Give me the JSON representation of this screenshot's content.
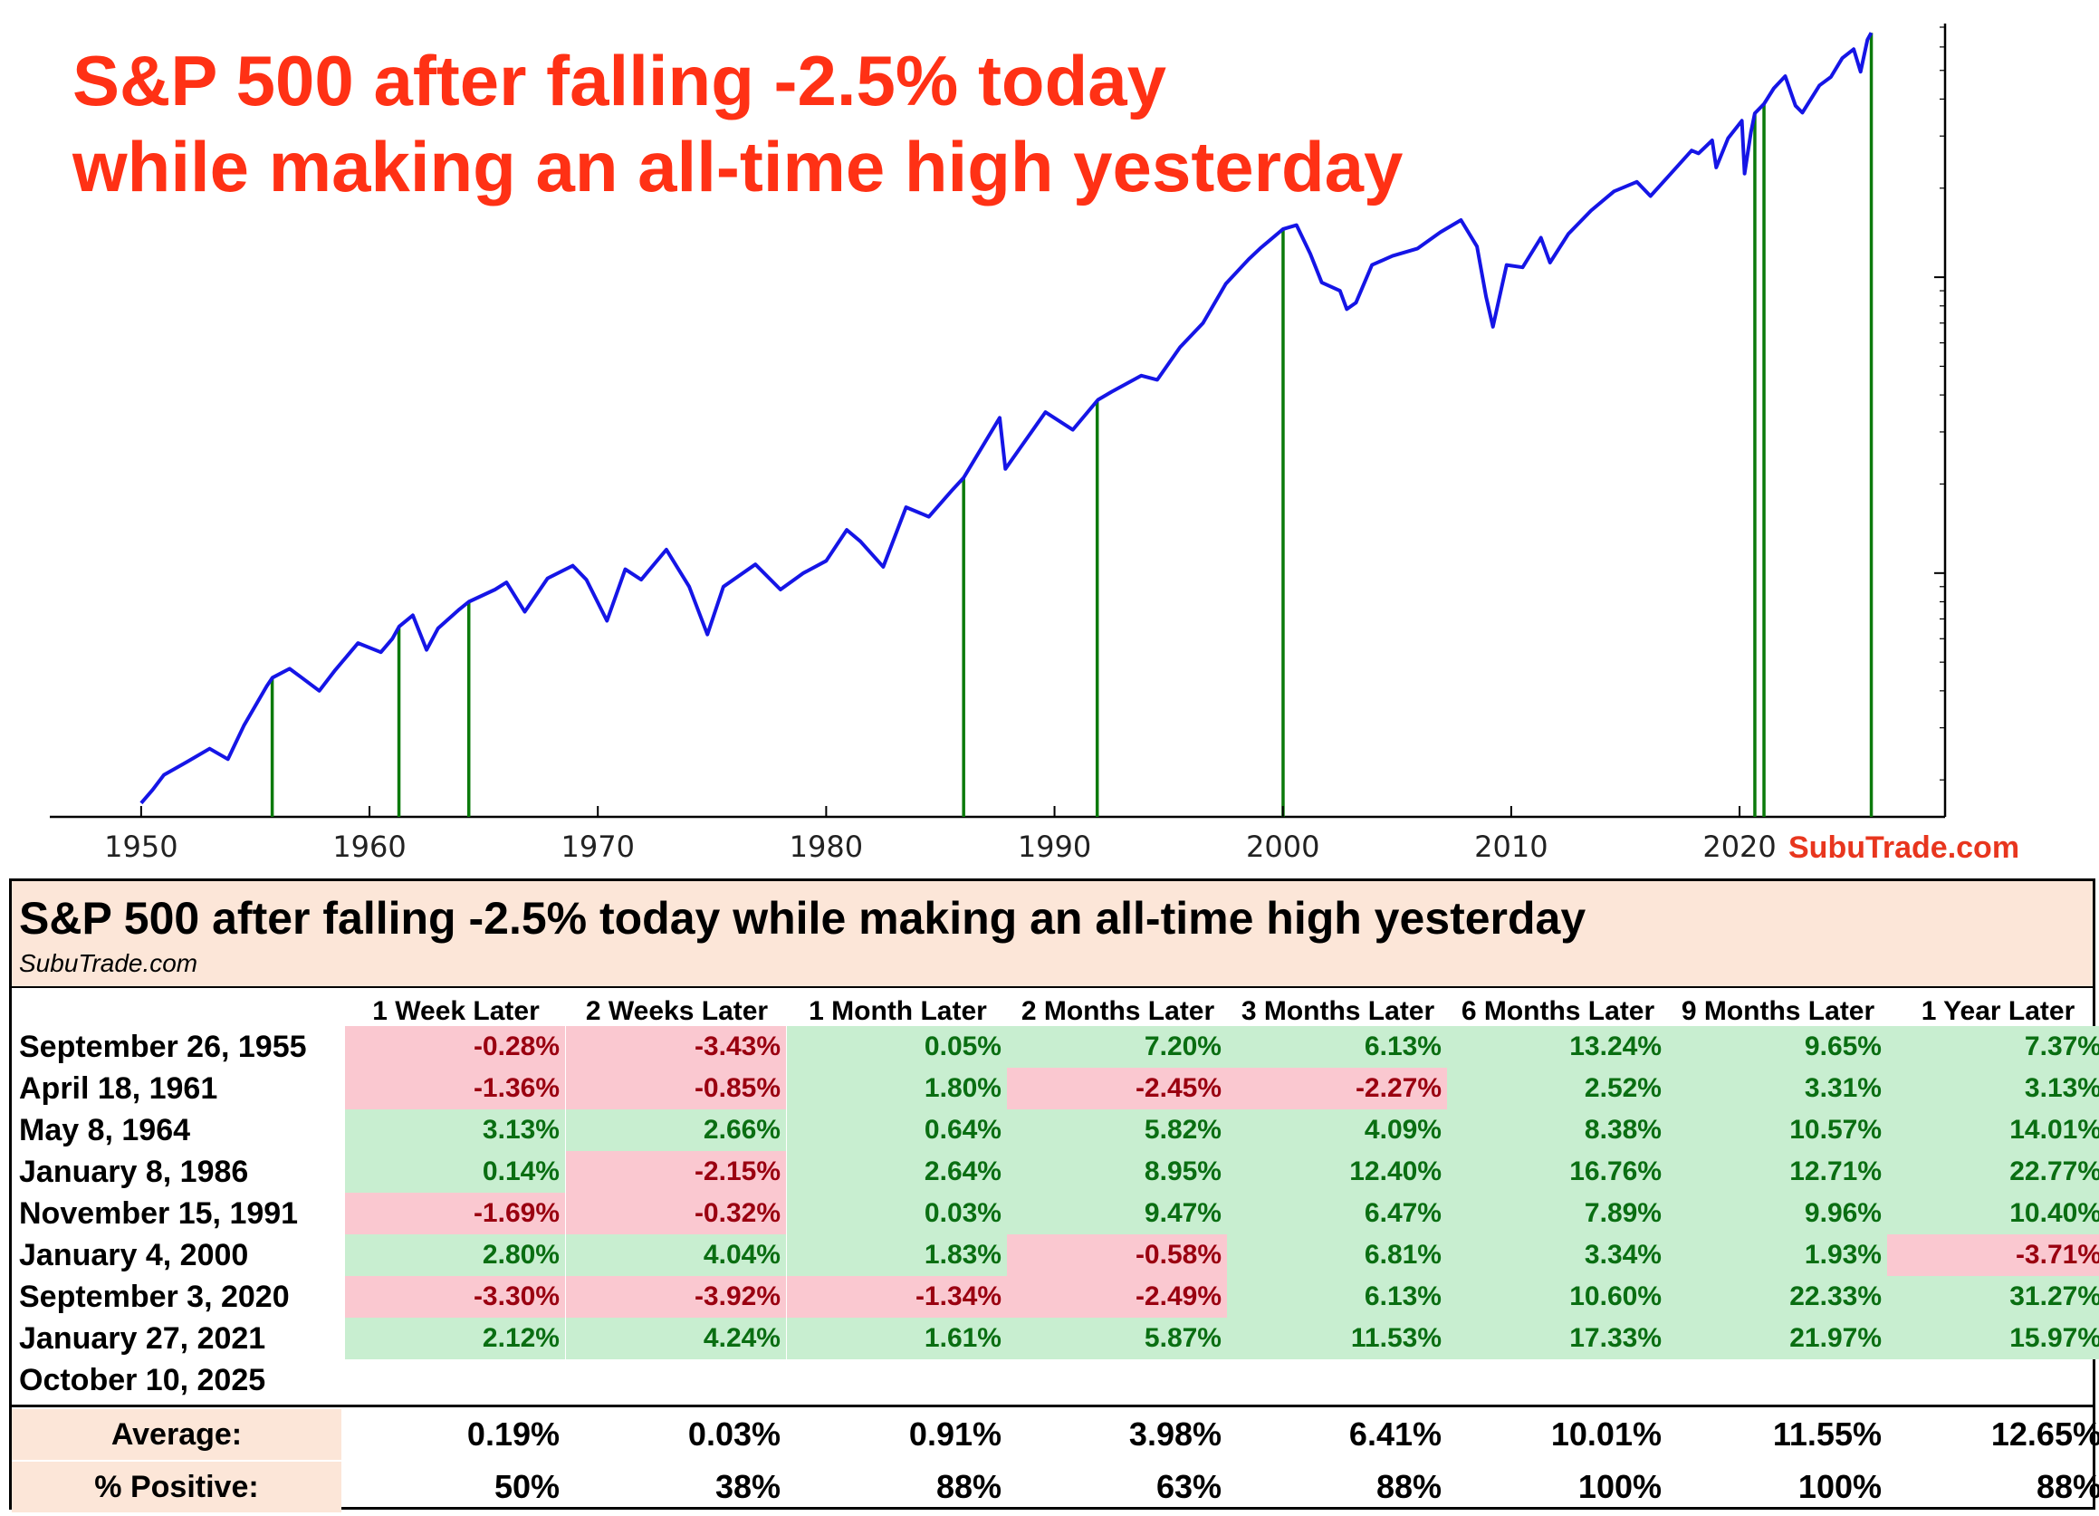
{
  "title_line1": "S&P 500 after falling -2.5% today",
  "title_line2": "while making an all-time high yesterday",
  "watermark": "SubuTrade.com",
  "colors": {
    "title": "#ff3115",
    "line": "#1515e6",
    "signal": "#0b7a0b",
    "positive_bg": "#c8eed0",
    "negative_bg": "#fac8d0",
    "header_bg": "#fce6d8"
  },
  "chart_data": {
    "type": "line",
    "title": "S&P 500 after falling -2.5% today while making an all-time high yesterday",
    "xlabel": "",
    "ylabel": "",
    "y_scale": "log",
    "xlim": [
      1946,
      2029
    ],
    "ylim": [
      15,
      7000
    ],
    "x_ticks": [
      "1950",
      "1960",
      "1970",
      "1980",
      "1990",
      "2000",
      "2010",
      "2020"
    ],
    "grid": false,
    "series": [
      {
        "points": [
          [
            1950.0,
            16.7
          ],
          [
            1950.5,
            18.5
          ],
          [
            1951.0,
            20.8
          ],
          [
            1952.0,
            23.0
          ],
          [
            1953.0,
            25.5
          ],
          [
            1953.8,
            23.5
          ],
          [
            1954.5,
            30.5
          ],
          [
            1955.5,
            41.5
          ],
          [
            1955.75,
            44.3
          ],
          [
            1956.5,
            47.5
          ],
          [
            1957.0,
            44.5
          ],
          [
            1957.8,
            40.0
          ],
          [
            1958.5,
            47.0
          ],
          [
            1959.5,
            58.0
          ],
          [
            1960.5,
            54.0
          ],
          [
            1961.0,
            60.0
          ],
          [
            1961.3,
            66.0
          ],
          [
            1961.9,
            72.0
          ],
          [
            1962.5,
            55.0
          ],
          [
            1963.0,
            65.0
          ],
          [
            1963.9,
            75.0
          ],
          [
            1964.35,
            80.0
          ],
          [
            1965.5,
            88.0
          ],
          [
            1966.0,
            93.0
          ],
          [
            1966.8,
            74.0
          ],
          [
            1967.8,
            96.0
          ],
          [
            1968.9,
            106.0
          ],
          [
            1969.5,
            95.0
          ],
          [
            1970.4,
            69.0
          ],
          [
            1971.2,
            103.0
          ],
          [
            1971.9,
            95.0
          ],
          [
            1973.0,
            120.0
          ],
          [
            1974.0,
            90.0
          ],
          [
            1974.8,
            62.0
          ],
          [
            1975.5,
            90.0
          ],
          [
            1976.9,
            107.0
          ],
          [
            1978.0,
            88.0
          ],
          [
            1979.0,
            100.0
          ],
          [
            1980.0,
            110.0
          ],
          [
            1980.9,
            140.0
          ],
          [
            1981.5,
            128.0
          ],
          [
            1982.5,
            105.0
          ],
          [
            1983.5,
            167.0
          ],
          [
            1984.5,
            155.0
          ],
          [
            1985.5,
            190.0
          ],
          [
            1986.02,
            210.0
          ],
          [
            1987.6,
            335.0
          ],
          [
            1987.85,
            225.0
          ],
          [
            1988.5,
            265.0
          ],
          [
            1989.6,
            350.0
          ],
          [
            1990.8,
            305.0
          ],
          [
            1991.9,
            385.0
          ],
          [
            1992.5,
            410.0
          ],
          [
            1993.8,
            465.0
          ],
          [
            1994.5,
            450.0
          ],
          [
            1995.5,
            580.0
          ],
          [
            1996.5,
            700.0
          ],
          [
            1997.5,
            950.0
          ],
          [
            1998.5,
            1150.0
          ],
          [
            1999.0,
            1250.0
          ],
          [
            2000.01,
            1455.0
          ],
          [
            2000.6,
            1500.0
          ],
          [
            2001.2,
            1200.0
          ],
          [
            2001.7,
            960.0
          ],
          [
            2002.5,
            900.0
          ],
          [
            2002.8,
            780.0
          ],
          [
            2003.2,
            820.0
          ],
          [
            2003.9,
            1100.0
          ],
          [
            2004.8,
            1180.0
          ],
          [
            2005.9,
            1250.0
          ],
          [
            2006.9,
            1420.0
          ],
          [
            2007.8,
            1560.0
          ],
          [
            2008.5,
            1270.0
          ],
          [
            2008.9,
            860.0
          ],
          [
            2009.2,
            680.0
          ],
          [
            2009.8,
            1100.0
          ],
          [
            2010.5,
            1080.0
          ],
          [
            2011.3,
            1360.0
          ],
          [
            2011.7,
            1120.0
          ],
          [
            2012.5,
            1400.0
          ],
          [
            2013.5,
            1680.0
          ],
          [
            2014.5,
            1950.0
          ],
          [
            2015.5,
            2100.0
          ],
          [
            2016.1,
            1880.0
          ],
          [
            2016.9,
            2200.0
          ],
          [
            2017.9,
            2680.0
          ],
          [
            2018.2,
            2620.0
          ],
          [
            2018.8,
            2900.0
          ],
          [
            2018.98,
            2350.0
          ],
          [
            2019.5,
            2950.0
          ],
          [
            2020.1,
            3380.0
          ],
          [
            2020.22,
            2240.0
          ],
          [
            2020.5,
            3100.0
          ],
          [
            2020.67,
            3580.0
          ],
          [
            2021.07,
            3850.0
          ],
          [
            2021.5,
            4350.0
          ],
          [
            2022.0,
            4780.0
          ],
          [
            2022.45,
            3800.0
          ],
          [
            2022.75,
            3600.0
          ],
          [
            2023.5,
            4450.0
          ],
          [
            2024.0,
            4750.0
          ],
          [
            2024.5,
            5500.0
          ],
          [
            2025.0,
            5900.0
          ],
          [
            2025.3,
            4950.0
          ],
          [
            2025.6,
            6350.0
          ],
          [
            2025.77,
            6700.0
          ]
        ]
      }
    ],
    "signal_lines": [
      1955.74,
      1961.29,
      1964.35,
      1986.02,
      1991.87,
      2000.01,
      2020.67,
      2021.07,
      2025.77
    ]
  },
  "table": {
    "title": "S&P 500 after falling -2.5% today while making an all-time high yesterday",
    "source": "SubuTrade.com",
    "columns": [
      "1 Week Later",
      "2 Weeks Later",
      "1 Month Later",
      "2 Months Later",
      "3 Months Later",
      "6 Months Later",
      "9 Months Later",
      "1 Year Later"
    ],
    "rows": [
      {
        "date": "September 26, 1955",
        "values": [
          "-0.28%",
          "-3.43%",
          "0.05%",
          "7.20%",
          "6.13%",
          "13.24%",
          "9.65%",
          "7.37%"
        ]
      },
      {
        "date": "April 18, 1961",
        "values": [
          "-1.36%",
          "-0.85%",
          "1.80%",
          "-2.45%",
          "-2.27%",
          "2.52%",
          "3.31%",
          "3.13%"
        ]
      },
      {
        "date": "May 8, 1964",
        "values": [
          "3.13%",
          "2.66%",
          "0.64%",
          "5.82%",
          "4.09%",
          "8.38%",
          "10.57%",
          "14.01%"
        ]
      },
      {
        "date": "January 8, 1986",
        "values": [
          "0.14%",
          "-2.15%",
          "2.64%",
          "8.95%",
          "12.40%",
          "16.76%",
          "12.71%",
          "22.77%"
        ]
      },
      {
        "date": "November 15, 1991",
        "values": [
          "-1.69%",
          "-0.32%",
          "0.03%",
          "9.47%",
          "6.47%",
          "7.89%",
          "9.96%",
          "10.40%"
        ]
      },
      {
        "date": "January 4, 2000",
        "values": [
          "2.80%",
          "4.04%",
          "1.83%",
          "-0.58%",
          "6.81%",
          "3.34%",
          "1.93%",
          "-3.71%"
        ]
      },
      {
        "date": "September 3, 2020",
        "values": [
          "-3.30%",
          "-3.92%",
          "-1.34%",
          "-2.49%",
          "6.13%",
          "10.60%",
          "22.33%",
          "31.27%"
        ]
      },
      {
        "date": "January 27, 2021",
        "values": [
          "2.12%",
          "4.24%",
          "1.61%",
          "5.87%",
          "11.53%",
          "17.33%",
          "21.97%",
          "15.97%"
        ]
      },
      {
        "date": "October 10, 2025",
        "values": [
          "",
          "",
          "",
          "",
          "",
          "",
          "",
          ""
        ]
      }
    ],
    "summary": [
      {
        "label": "Average:",
        "values": [
          "0.19%",
          "0.03%",
          "0.91%",
          "3.98%",
          "6.41%",
          "10.01%",
          "11.55%",
          "12.65%"
        ]
      },
      {
        "label": "% Positive:",
        "values": [
          "50%",
          "38%",
          "88%",
          "63%",
          "88%",
          "100%",
          "100%",
          "88%"
        ]
      }
    ]
  }
}
